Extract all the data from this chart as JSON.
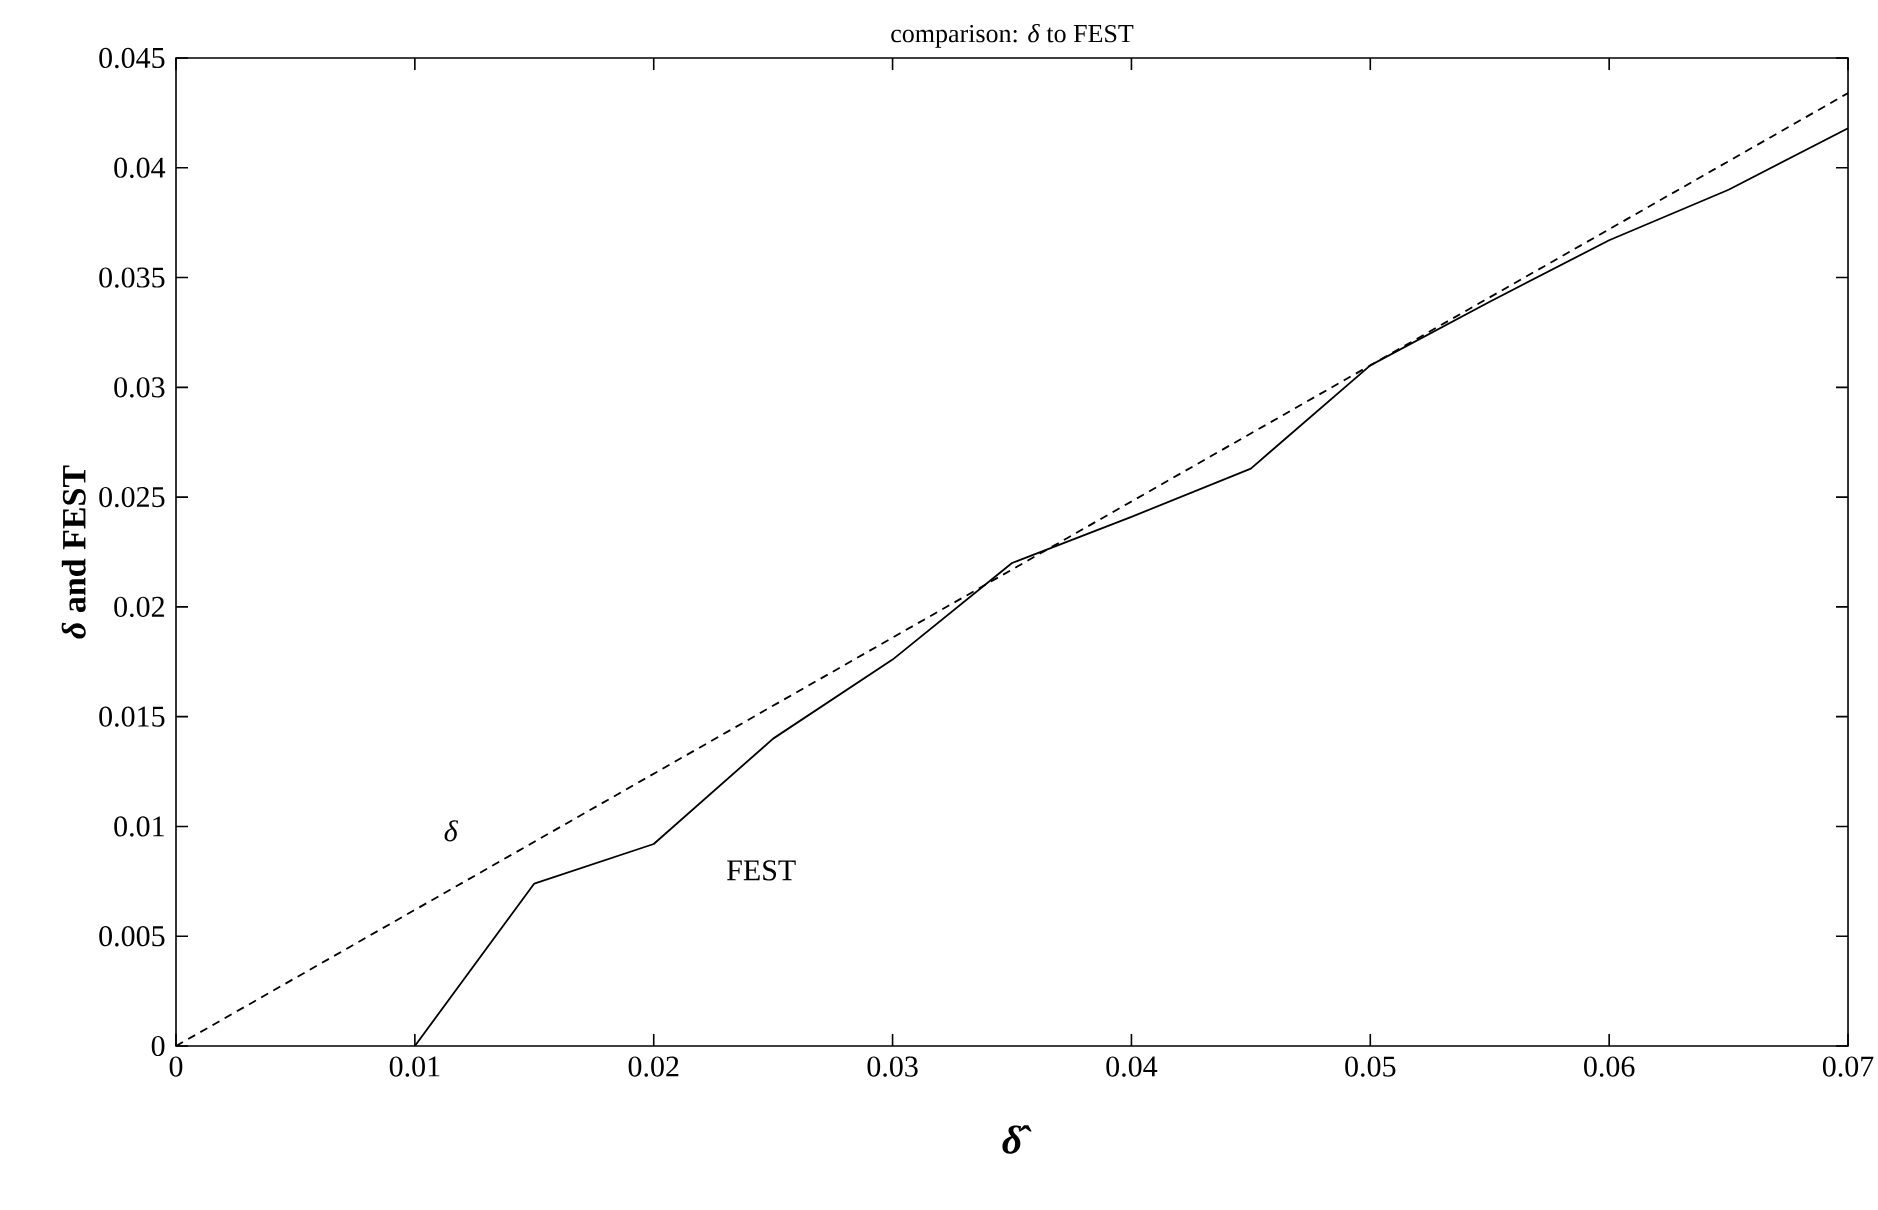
{
  "chart_data": {
    "type": "line",
    "title": "comparison: *δ* to FEST",
    "xlabel": "δ̂",
    "ylabel": "*δ* and FEST",
    "xlim": [
      0,
      0.07
    ],
    "ylim": [
      0,
      0.045
    ],
    "xticks": [
      0,
      0.01,
      0.02,
      0.03,
      0.04,
      0.05,
      0.06,
      0.07
    ],
    "yticks": [
      0,
      0.005,
      0.01,
      0.015,
      0.02,
      0.025,
      0.03,
      0.035,
      0.04,
      0.045
    ],
    "grid": false,
    "legend": false,
    "marker": "none",
    "series": [
      {
        "name": "δ",
        "color": "#000000",
        "line_style": "dashed",
        "x": [
          0,
          0.07
        ],
        "values": [
          0,
          0.0434
        ]
      },
      {
        "name": "FEST",
        "color": "#000000",
        "line_style": "solid",
        "x": [
          0.01,
          0.015,
          0.02,
          0.025,
          0.03,
          0.035,
          0.04,
          0.045,
          0.05,
          0.055,
          0.06,
          0.065,
          0.07
        ],
        "values": [
          0,
          0.0074,
          0.0092,
          0.014,
          0.0176,
          0.022,
          0.0241,
          0.0263,
          0.031,
          0.0339,
          0.0367,
          0.039,
          0.0418
        ]
      }
    ]
  }
}
